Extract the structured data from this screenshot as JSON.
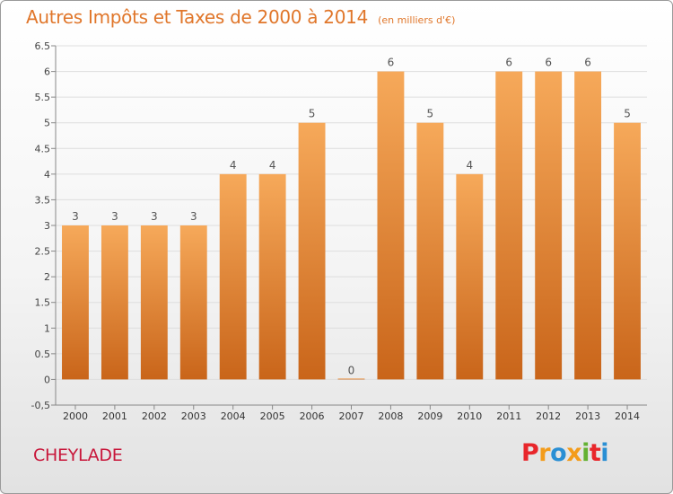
{
  "header": {
    "title": "Autres Impôts et Taxes de 2000 à 2014",
    "subtitle": "(en milliers d'€)"
  },
  "footer": {
    "commune": "CHEYLADE",
    "brand_letters": [
      "P",
      "r",
      "o",
      "x",
      "i",
      "t",
      "i"
    ],
    "brand_colors": [
      "#e8262b",
      "#f39c1b",
      "#2a8fd4",
      "#f39c1b",
      "#63b132",
      "#e8262b",
      "#2a8fd4"
    ]
  },
  "colors": {
    "bar_top": "#f6a95a",
    "bar_bottom": "#c9651a",
    "title": "#e0762a",
    "commune": "#c8163a"
  },
  "chart_data": {
    "type": "bar",
    "title": "Autres Impôts et Taxes de 2000 à 2014",
    "subtitle": "(en milliers d'€)",
    "categories": [
      "2000",
      "2001",
      "2002",
      "2003",
      "2004",
      "2005",
      "2006",
      "2007",
      "2008",
      "2009",
      "2010",
      "2011",
      "2012",
      "2013",
      "2014"
    ],
    "values": [
      3,
      3,
      3,
      3,
      4,
      4,
      5,
      0,
      6,
      5,
      4,
      6,
      6,
      6,
      5
    ],
    "data_labels": [
      "3",
      "3",
      "3",
      "3",
      "4",
      "4",
      "5",
      "0",
      "6",
      "5",
      "4",
      "6",
      "6",
      "6",
      "5"
    ],
    "ylim": [
      -0.5,
      6.5
    ],
    "yticks": [
      "-0,5",
      "0",
      "0.5",
      "1",
      "1.5",
      "2",
      "2.5",
      "3",
      "3.5",
      "4",
      "4.5",
      "5",
      "5.5",
      "6",
      "6.5"
    ],
    "ytick_values": [
      -0.5,
      0,
      0.5,
      1,
      1.5,
      2,
      2.5,
      3,
      3.5,
      4,
      4.5,
      5,
      5.5,
      6,
      6.5
    ],
    "grid": true,
    "xlabel": "",
    "ylabel": ""
  }
}
